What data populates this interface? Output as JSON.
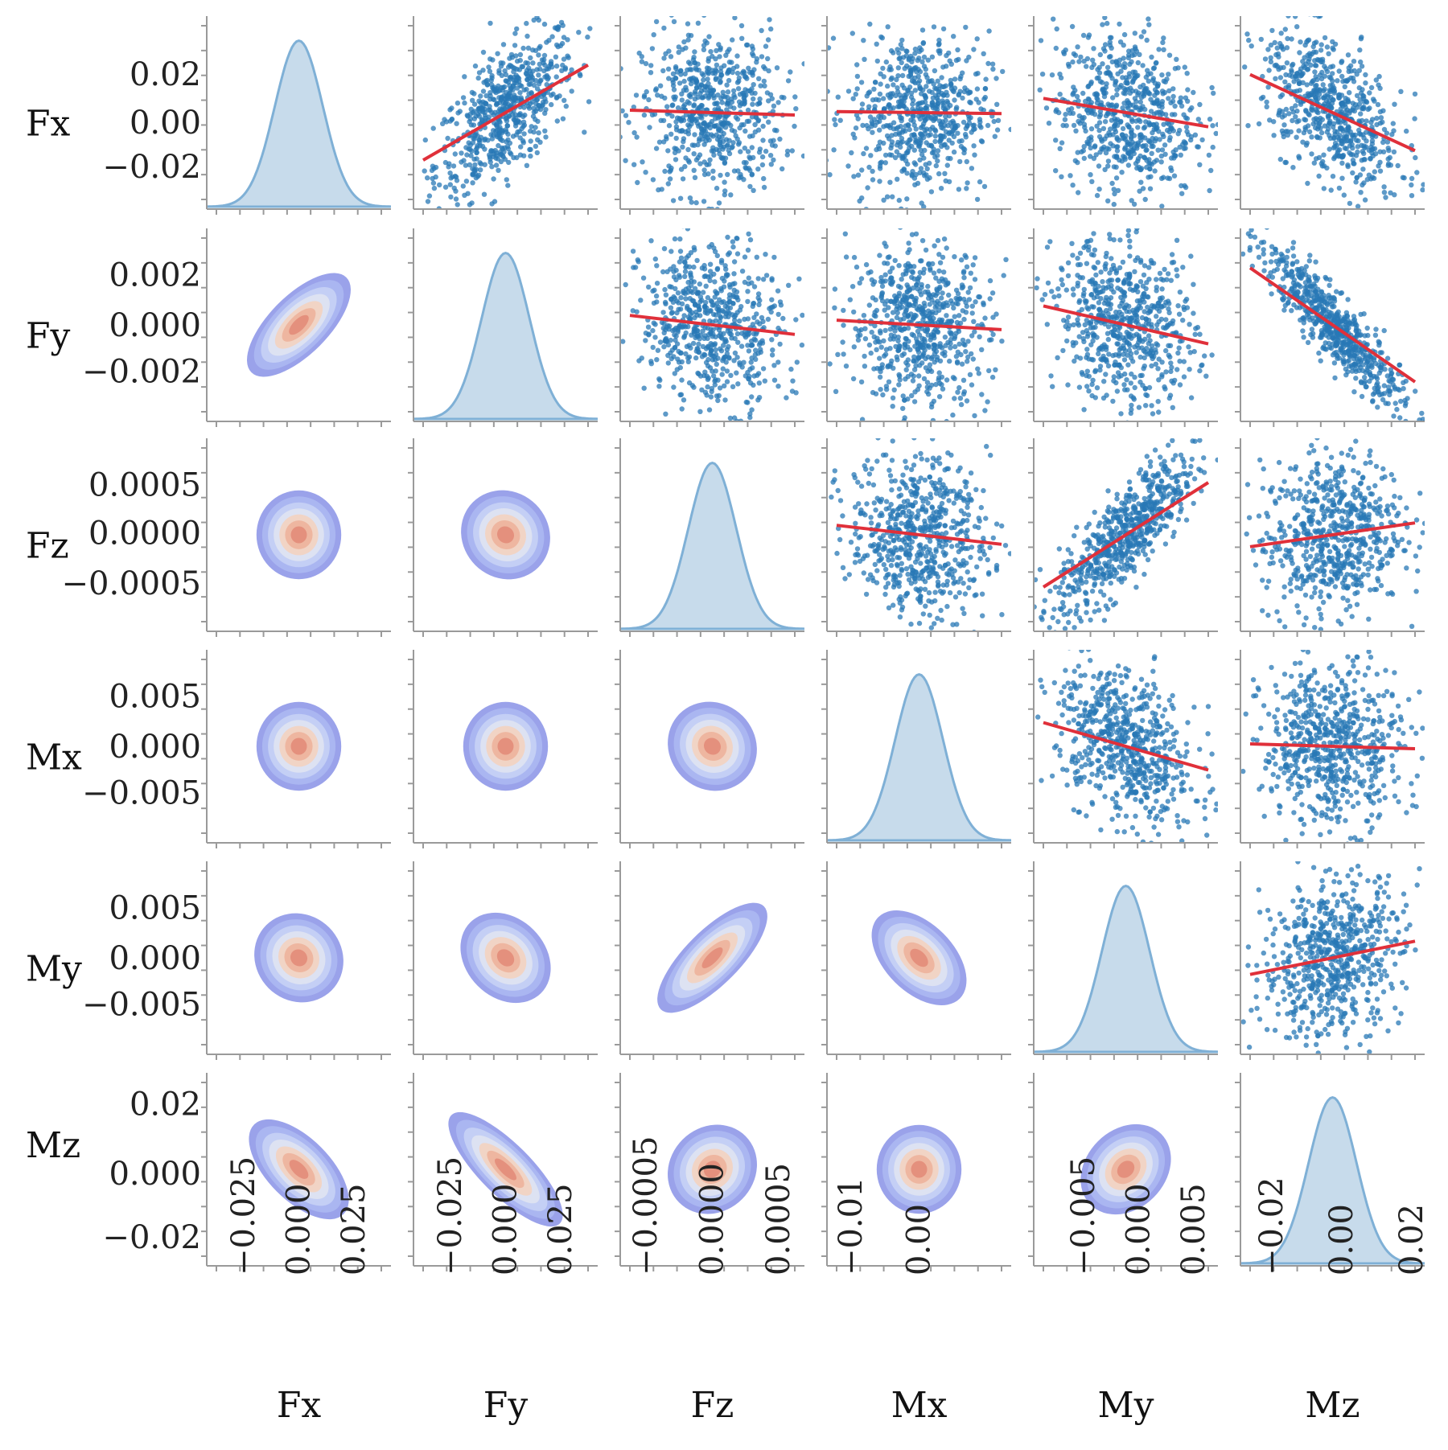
{
  "chart_data": {
    "type": "pairplot",
    "title": "",
    "variables": [
      "Fx",
      "Fy",
      "Fz",
      "Mx",
      "My",
      "Mz"
    ],
    "layout": {
      "diagonal": "kde",
      "upper": "scatter with red regression line",
      "lower": "filled kde contours (coolwarm)"
    },
    "colors": {
      "scatter": "#2878b5",
      "regression": "#e0303a",
      "diag_fill": "#c7dbeb",
      "diag_line": "#7fb0d6",
      "kde_levels": [
        "#9aa2ea",
        "#aab6f1",
        "#c4cff5",
        "#dde2f2",
        "#f1d4c5",
        "#eeb6a0",
        "#e4907d"
      ]
    },
    "y_tick_labels": [
      [
        "0.02",
        "0.00",
        "−0.02"
      ],
      [
        "0.002",
        "0.000",
        "−0.002"
      ],
      [
        "0.0005",
        "0.0000",
        "−0.0005"
      ],
      [
        "0.005",
        "0.000",
        "−0.005"
      ],
      [
        "0.005",
        "0.000",
        "−0.005"
      ],
      [
        "0.02",
        "0.000",
        "−0.02"
      ]
    ],
    "x_tick_labels": [
      [
        "−0.025",
        "0.000",
        "0.025"
      ],
      [
        "−0.025",
        "0.000",
        "0.025"
      ],
      [
        "−0.0005",
        "0.0000",
        "0.0005"
      ],
      [
        "−0.01",
        "0.00"
      ],
      [
        "−0.005",
        "0.000",
        "0.005"
      ],
      [
        "−0.02",
        "0.00",
        "0.02"
      ]
    ],
    "regression_slopes": {
      "Fx-Fy": 1.0,
      "Fx-Fz": -0.05,
      "Fx-Mx": -0.02,
      "Fx-My": -0.3,
      "Fx-Mz": -0.8,
      "Fy-Fz": -0.2,
      "Fy-Mx": -0.1,
      "Fy-My": -0.4,
      "Fy-Mz": -1.2,
      "Fz-Mx": -0.2,
      "Fz-My": 1.1,
      "Fz-Mz": 0.25,
      "Mx-My": -0.5,
      "Mx-Mz": -0.05,
      "My-Mz": 0.35
    },
    "correlations": {
      "Fx-Fy": 0.65,
      "Fx-Fz": 0.0,
      "Fx-Mx": 0.0,
      "Fx-My": -0.1,
      "Fx-Mz": -0.55,
      "Fy-Fz": -0.1,
      "Fy-Mx": -0.05,
      "Fy-My": -0.2,
      "Fy-Mz": -0.9,
      "Fz-Mx": -0.1,
      "Fz-My": 0.8,
      "Fz-Mz": 0.12,
      "Mx-My": -0.4,
      "Mx-Mz": -0.02,
      "My-Mz": 0.2
    }
  }
}
